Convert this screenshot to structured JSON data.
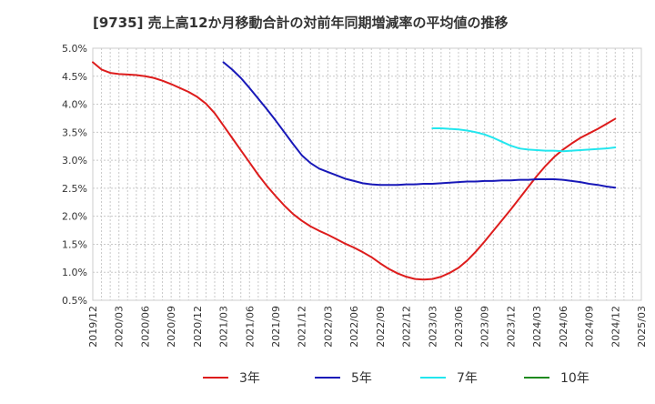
{
  "chart_data": {
    "type": "line",
    "title": "[9735]  売上高12か月移動合計の対前年同期増減率の平均値の推移",
    "xlabel": "",
    "ylabel": "",
    "grid": true,
    "legend_position": "bottom",
    "x_ticks": [
      "2019/12",
      "2020/03",
      "2020/06",
      "2020/09",
      "2020/12",
      "2021/03",
      "2021/06",
      "2021/09",
      "2021/12",
      "2022/03",
      "2022/06",
      "2022/09",
      "2022/12",
      "2023/03",
      "2023/06",
      "2023/09",
      "2023/12",
      "2024/03",
      "2024/06",
      "2024/09",
      "2024/12",
      "2025/03"
    ],
    "y_ticks": [
      "0.5%",
      "1.0%",
      "1.5%",
      "2.0%",
      "2.5%",
      "3.0%",
      "3.5%",
      "4.0%",
      "4.5%",
      "5.0%"
    ],
    "ylim": [
      0.5,
      5.0
    ],
    "series": [
      {
        "name": "3年",
        "color": "#dd1c1c",
        "points": [
          [
            "2019/12",
            4.75
          ],
          [
            "2020/01",
            4.62
          ],
          [
            "2020/02",
            4.56
          ],
          [
            "2020/03",
            4.54
          ],
          [
            "2020/04",
            4.53
          ],
          [
            "2020/05",
            4.52
          ],
          [
            "2020/06",
            4.5
          ],
          [
            "2020/07",
            4.47
          ],
          [
            "2020/08",
            4.42
          ],
          [
            "2020/09",
            4.36
          ],
          [
            "2020/10",
            4.29
          ],
          [
            "2020/11",
            4.22
          ],
          [
            "2020/12",
            4.13
          ],
          [
            "2021/01",
            4.01
          ],
          [
            "2021/02",
            3.84
          ],
          [
            "2021/03",
            3.62
          ],
          [
            "2021/04",
            3.4
          ],
          [
            "2021/05",
            3.18
          ],
          [
            "2021/06",
            2.96
          ],
          [
            "2021/07",
            2.74
          ],
          [
            "2021/08",
            2.54
          ],
          [
            "2021/09",
            2.36
          ],
          [
            "2021/10",
            2.19
          ],
          [
            "2021/11",
            2.04
          ],
          [
            "2021/12",
            1.92
          ],
          [
            "2022/01",
            1.82
          ],
          [
            "2022/02",
            1.74
          ],
          [
            "2022/03",
            1.67
          ],
          [
            "2022/04",
            1.59
          ],
          [
            "2022/05",
            1.51
          ],
          [
            "2022/06",
            1.44
          ],
          [
            "2022/07",
            1.36
          ],
          [
            "2022/08",
            1.27
          ],
          [
            "2022/09",
            1.16
          ],
          [
            "2022/10",
            1.06
          ],
          [
            "2022/11",
            0.98
          ],
          [
            "2022/12",
            0.92
          ],
          [
            "2023/01",
            0.88
          ],
          [
            "2023/02",
            0.87
          ],
          [
            "2023/03",
            0.88
          ],
          [
            "2023/04",
            0.92
          ],
          [
            "2023/05",
            0.99
          ],
          [
            "2023/06",
            1.08
          ],
          [
            "2023/07",
            1.21
          ],
          [
            "2023/08",
            1.37
          ],
          [
            "2023/09",
            1.55
          ],
          [
            "2023/10",
            1.74
          ],
          [
            "2023/11",
            1.93
          ],
          [
            "2023/12",
            2.12
          ],
          [
            "2024/01",
            2.32
          ],
          [
            "2024/02",
            2.52
          ],
          [
            "2024/03",
            2.72
          ],
          [
            "2024/04",
            2.9
          ],
          [
            "2024/05",
            3.06
          ],
          [
            "2024/06",
            3.19
          ],
          [
            "2024/07",
            3.3
          ],
          [
            "2024/08",
            3.4
          ],
          [
            "2024/09",
            3.48
          ],
          [
            "2024/10",
            3.56
          ],
          [
            "2024/11",
            3.65
          ],
          [
            "2024/12",
            3.74
          ]
        ]
      },
      {
        "name": "5年",
        "color": "#1818b8",
        "points": [
          [
            "2021/03",
            4.75
          ],
          [
            "2021/04",
            4.62
          ],
          [
            "2021/05",
            4.47
          ],
          [
            "2021/06",
            4.29
          ],
          [
            "2021/07",
            4.1
          ],
          [
            "2021/08",
            3.91
          ],
          [
            "2021/09",
            3.71
          ],
          [
            "2021/10",
            3.5
          ],
          [
            "2021/11",
            3.29
          ],
          [
            "2021/12",
            3.09
          ],
          [
            "2022/01",
            2.95
          ],
          [
            "2022/02",
            2.85
          ],
          [
            "2022/03",
            2.79
          ],
          [
            "2022/04",
            2.73
          ],
          [
            "2022/05",
            2.67
          ],
          [
            "2022/06",
            2.63
          ],
          [
            "2022/07",
            2.59
          ],
          [
            "2022/08",
            2.57
          ],
          [
            "2022/09",
            2.56
          ],
          [
            "2022/10",
            2.56
          ],
          [
            "2022/11",
            2.56
          ],
          [
            "2022/12",
            2.57
          ],
          [
            "2023/01",
            2.57
          ],
          [
            "2023/02",
            2.58
          ],
          [
            "2023/03",
            2.58
          ],
          [
            "2023/04",
            2.59
          ],
          [
            "2023/05",
            2.6
          ],
          [
            "2023/06",
            2.61
          ],
          [
            "2023/07",
            2.62
          ],
          [
            "2023/08",
            2.62
          ],
          [
            "2023/09",
            2.63
          ],
          [
            "2023/10",
            2.63
          ],
          [
            "2023/11",
            2.64
          ],
          [
            "2023/12",
            2.64
          ],
          [
            "2024/01",
            2.65
          ],
          [
            "2024/02",
            2.65
          ],
          [
            "2024/03",
            2.66
          ],
          [
            "2024/04",
            2.66
          ],
          [
            "2024/05",
            2.66
          ],
          [
            "2024/06",
            2.65
          ],
          [
            "2024/07",
            2.63
          ],
          [
            "2024/08",
            2.61
          ],
          [
            "2024/09",
            2.58
          ],
          [
            "2024/10",
            2.56
          ],
          [
            "2024/11",
            2.53
          ],
          [
            "2024/12",
            2.51
          ]
        ]
      },
      {
        "name": "7年",
        "color": "#22e6ee",
        "points": [
          [
            "2023/03",
            3.57
          ],
          [
            "2023/04",
            3.57
          ],
          [
            "2023/05",
            3.56
          ],
          [
            "2023/06",
            3.55
          ],
          [
            "2023/07",
            3.53
          ],
          [
            "2023/08",
            3.5
          ],
          [
            "2023/09",
            3.46
          ],
          [
            "2023/10",
            3.4
          ],
          [
            "2023/11",
            3.33
          ],
          [
            "2023/12",
            3.26
          ],
          [
            "2024/01",
            3.21
          ],
          [
            "2024/02",
            3.19
          ],
          [
            "2024/03",
            3.18
          ],
          [
            "2024/04",
            3.17
          ],
          [
            "2024/05",
            3.17
          ],
          [
            "2024/06",
            3.16
          ],
          [
            "2024/07",
            3.17
          ],
          [
            "2024/08",
            3.18
          ],
          [
            "2024/09",
            3.19
          ],
          [
            "2024/10",
            3.2
          ],
          [
            "2024/11",
            3.21
          ],
          [
            "2024/12",
            3.23
          ]
        ]
      },
      {
        "name": "10年",
        "color": "#1e8a1e",
        "points": []
      }
    ]
  }
}
